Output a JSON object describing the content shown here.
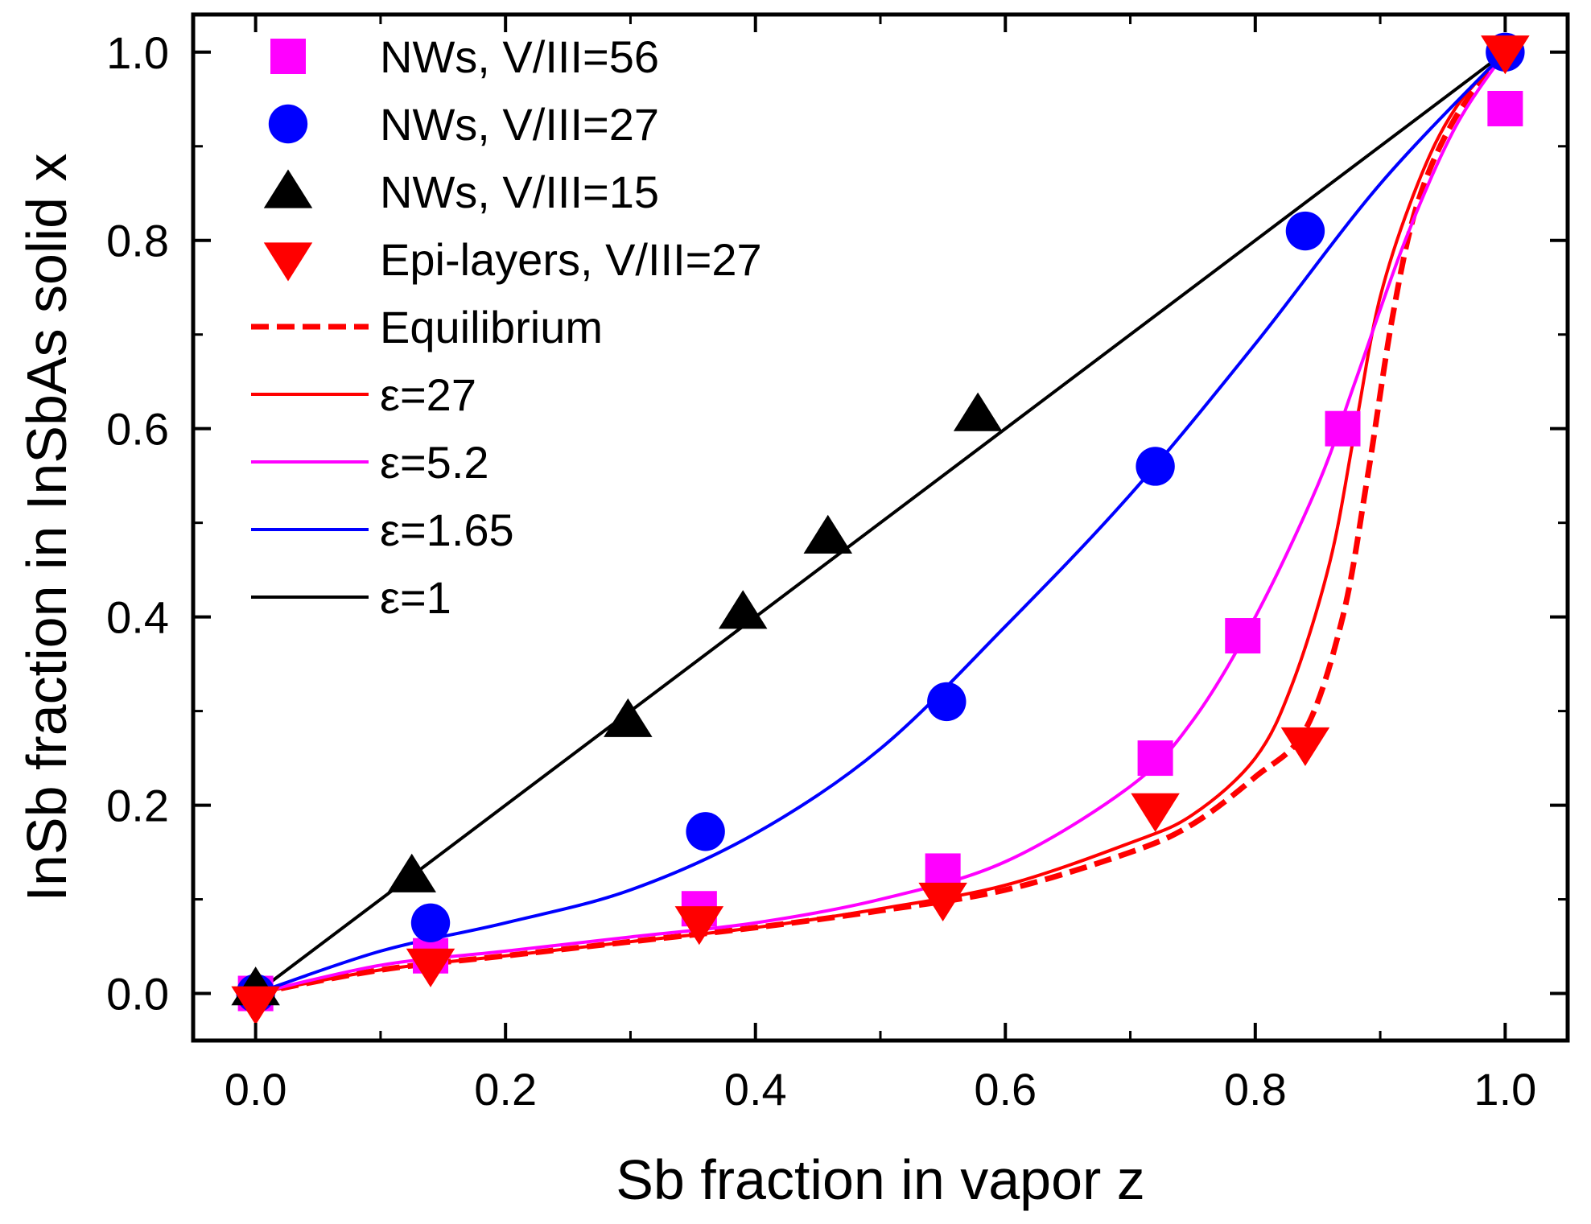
{
  "chart_data": {
    "type": "scatter",
    "title": "",
    "xlabel": "Sb fraction in vapor z",
    "ylabel": "InSb fraction in InSbAs solid x",
    "xlim": [
      -0.05,
      1.05
    ],
    "ylim": [
      -0.05,
      1.04
    ],
    "xticks": [
      "0.0",
      "0.2",
      "0.4",
      "0.6",
      "0.8",
      "1.0"
    ],
    "yticks": [
      "0.0",
      "0.2",
      "0.4",
      "0.6",
      "0.8",
      "1.0"
    ],
    "grid": false,
    "legend_position": "top-left",
    "series": [
      {
        "name": "NWs, V/III=56",
        "kind": "marker",
        "marker": "square",
        "color": "#ff00ff",
        "points": [
          [
            0.0,
            0.0
          ],
          [
            0.14,
            0.04
          ],
          [
            0.355,
            0.09
          ],
          [
            0.55,
            0.13
          ],
          [
            0.72,
            0.25
          ],
          [
            0.79,
            0.38
          ],
          [
            0.87,
            0.6
          ],
          [
            1.0,
            0.94
          ]
        ]
      },
      {
        "name": "NWs, V/III=27",
        "kind": "marker",
        "marker": "circle",
        "color": "#0000ff",
        "points": [
          [
            0.0,
            0.0
          ],
          [
            0.14,
            0.075
          ],
          [
            0.36,
            0.172
          ],
          [
            0.553,
            0.31
          ],
          [
            0.72,
            0.56
          ],
          [
            0.84,
            0.81
          ],
          [
            1.0,
            1.0
          ]
        ]
      },
      {
        "name": "NWs, V/III=15",
        "kind": "marker",
        "marker": "triangle-up",
        "color": "#000000",
        "points": [
          [
            0.0,
            0.005
          ],
          [
            0.125,
            0.125
          ],
          [
            0.298,
            0.29
          ],
          [
            0.39,
            0.405
          ],
          [
            0.458,
            0.485
          ],
          [
            0.578,
            0.615
          ]
        ]
      },
      {
        "name": "Epi-layers, V/III=27",
        "kind": "marker",
        "marker": "triangle-down",
        "color": "#ff0000",
        "points": [
          [
            0.0,
            -0.01
          ],
          [
            0.14,
            0.03
          ],
          [
            0.355,
            0.075
          ],
          [
            0.55,
            0.1
          ],
          [
            0.72,
            0.195
          ],
          [
            0.84,
            0.265
          ],
          [
            1.0,
            1.0
          ]
        ]
      },
      {
        "name": "Equilibrium",
        "kind": "line",
        "style": "dashed",
        "color": "#ff0000",
        "points": [
          [
            0.0,
            0.0
          ],
          [
            0.1,
            0.025
          ],
          [
            0.2,
            0.04
          ],
          [
            0.3,
            0.055
          ],
          [
            0.4,
            0.07
          ],
          [
            0.5,
            0.088
          ],
          [
            0.6,
            0.11
          ],
          [
            0.7,
            0.15
          ],
          [
            0.75,
            0.18
          ],
          [
            0.8,
            0.23
          ],
          [
            0.84,
            0.28
          ],
          [
            0.87,
            0.4
          ],
          [
            0.89,
            0.55
          ],
          [
            0.91,
            0.72
          ],
          [
            0.93,
            0.84
          ],
          [
            0.96,
            0.93
          ],
          [
            1.0,
            1.0
          ]
        ]
      },
      {
        "name": "ε=27",
        "kind": "line",
        "style": "solid",
        "color": "#ff0000",
        "points": [
          [
            0.0,
            0.0
          ],
          [
            0.1,
            0.025
          ],
          [
            0.2,
            0.04
          ],
          [
            0.3,
            0.055
          ],
          [
            0.4,
            0.07
          ],
          [
            0.5,
            0.09
          ],
          [
            0.6,
            0.115
          ],
          [
            0.7,
            0.16
          ],
          [
            0.75,
            0.19
          ],
          [
            0.8,
            0.25
          ],
          [
            0.83,
            0.33
          ],
          [
            0.86,
            0.46
          ],
          [
            0.88,
            0.6
          ],
          [
            0.9,
            0.74
          ],
          [
            0.93,
            0.86
          ],
          [
            0.96,
            0.94
          ],
          [
            1.0,
            1.0
          ]
        ]
      },
      {
        "name": "ε=5.2",
        "kind": "line",
        "style": "solid",
        "color": "#ff00ff",
        "points": [
          [
            0.0,
            0.0
          ],
          [
            0.1,
            0.03
          ],
          [
            0.2,
            0.045
          ],
          [
            0.3,
            0.06
          ],
          [
            0.4,
            0.075
          ],
          [
            0.5,
            0.1
          ],
          [
            0.6,
            0.14
          ],
          [
            0.7,
            0.22
          ],
          [
            0.75,
            0.29
          ],
          [
            0.8,
            0.4
          ],
          [
            0.85,
            0.54
          ],
          [
            0.88,
            0.65
          ],
          [
            0.92,
            0.8
          ],
          [
            0.96,
            0.92
          ],
          [
            1.0,
            1.0
          ]
        ]
      },
      {
        "name": "ε=1.65",
        "kind": "line",
        "style": "solid",
        "color": "#0000ff",
        "points": [
          [
            0.0,
            0.0
          ],
          [
            0.1,
            0.045
          ],
          [
            0.2,
            0.075
          ],
          [
            0.3,
            0.11
          ],
          [
            0.4,
            0.17
          ],
          [
            0.5,
            0.26
          ],
          [
            0.6,
            0.39
          ],
          [
            0.7,
            0.53
          ],
          [
            0.8,
            0.69
          ],
          [
            0.9,
            0.86
          ],
          [
            1.0,
            1.0
          ]
        ]
      },
      {
        "name": "ε=1",
        "kind": "line",
        "style": "solid",
        "color": "#000000",
        "points": [
          [
            0.0,
            0.0
          ],
          [
            1.0,
            1.0
          ]
        ]
      }
    ]
  }
}
